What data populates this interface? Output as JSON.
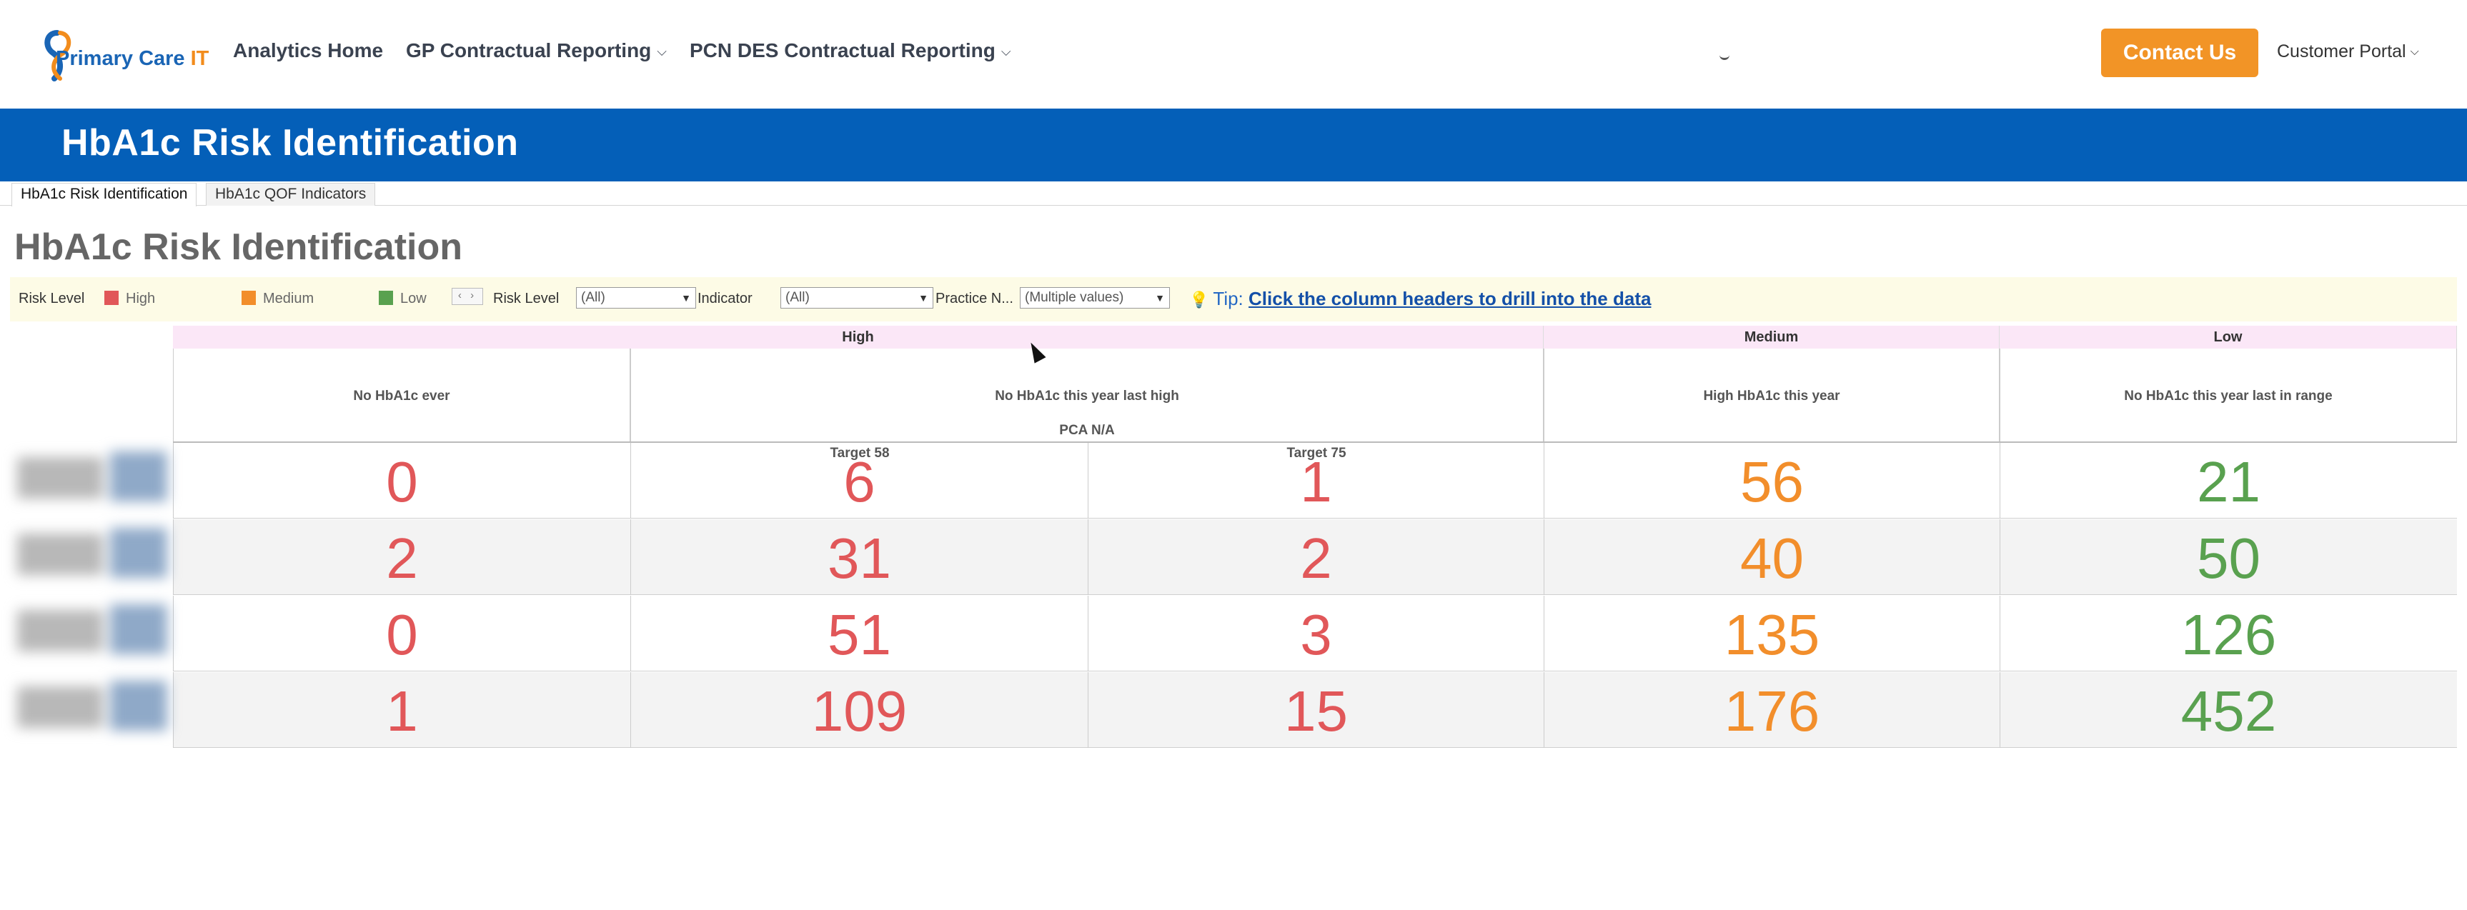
{
  "nav": {
    "logo_text_primary": "P",
    "logo_text_rest": "rimary Care",
    "logo_text_it": "IT",
    "items": [
      {
        "label": "Analytics Home",
        "has_dropdown": false
      },
      {
        "label": "GP Contractual Reporting",
        "has_dropdown": true
      },
      {
        "label": "PCN DES Contractual Reporting",
        "has_dropdown": true
      }
    ],
    "contact_label": "Contact Us",
    "portal_label": "Customer Portal",
    "chevron": "⌵"
  },
  "banner": {
    "title": "HbA1c Risk Identification"
  },
  "tabs": [
    {
      "label": "HbA1c Risk Identification",
      "active": true
    },
    {
      "label": "HbA1c QOF Indicators",
      "active": false
    }
  ],
  "page_title": "HbA1c Risk Identification",
  "filters": {
    "legend_title": "Risk Level",
    "legend": [
      {
        "label": "High",
        "color": "#e15759"
      },
      {
        "label": "Medium",
        "color": "#f28e2b"
      },
      {
        "label": "Low",
        "color": "#59a14f"
      }
    ],
    "legend_nav": "‹ ›",
    "risk_level_label": "Risk Level",
    "risk_level_value": "(All)",
    "indicator_label": "Indicator",
    "indicator_value": "(All)",
    "practice_label": "Practice N...",
    "practice_value": "(Multiple values)",
    "tip_icon": "💡",
    "tip_label": "Tip:",
    "tip_link": "Click the column headers to drill into the data",
    "dropdown_arrow": "▼"
  },
  "table": {
    "bands": [
      {
        "label": "High",
        "color": "#fbe7f7"
      },
      {
        "label": "Medium",
        "color": "#fbe7f7"
      },
      {
        "label": "Low",
        "color": "#fbe7f7"
      }
    ],
    "columns": [
      {
        "header": "No HbA1c ever",
        "sub1": "",
        "sub2": ""
      },
      {
        "header": "No HbA1c this year last high",
        "sub1": "PCA N/A",
        "sub2a": "Target 58",
        "sub2b": "Target 75"
      },
      {
        "header": "High HbA1c this year",
        "sub1": "",
        "sub2": ""
      },
      {
        "header": "No HbA1c this year last in range",
        "sub1": "",
        "sub2": ""
      }
    ],
    "colors": {
      "high": "#e15759",
      "medium": "#f28e2b",
      "low": "#59a14f"
    },
    "rows": [
      [
        "0",
        "6",
        "1",
        "56",
        "21"
      ],
      [
        "2",
        "31",
        "2",
        "40",
        "50"
      ],
      [
        "0",
        "51",
        "3",
        "135",
        "126"
      ],
      [
        "1",
        "109",
        "15",
        "176",
        "452"
      ]
    ]
  }
}
